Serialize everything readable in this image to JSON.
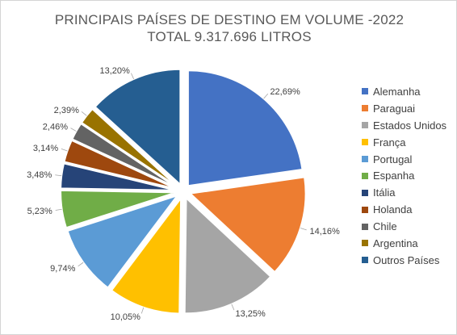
{
  "chart_data": {
    "type": "pie",
    "title": "PRINCIPAIS PAÍSES DE DESTINO EM VOLUME -2022",
    "subtitle": "TOTAL 9.317.696 LITROS",
    "legend_position": "right",
    "slices": [
      {
        "name": "Alemanha",
        "value": 22.69,
        "label": "22,69%",
        "color": "#4472C4"
      },
      {
        "name": "Paraguai",
        "value": 14.16,
        "label": "14,16%",
        "color": "#ED7D31"
      },
      {
        "name": "Estados Unidos",
        "value": 13.25,
        "label": "13,25%",
        "color": "#A5A5A5"
      },
      {
        "name": "França",
        "value": 10.05,
        "label": "10,05%",
        "color": "#FFC000"
      },
      {
        "name": "Portugal",
        "value": 9.74,
        "label": "9,74%",
        "color": "#5B9BD5"
      },
      {
        "name": "Espanha",
        "value": 5.23,
        "label": "5,23%",
        "color": "#70AD47"
      },
      {
        "name": "Itália",
        "value": 3.48,
        "label": "3,48%",
        "color": "#264478"
      },
      {
        "name": "Holanda",
        "value": 3.14,
        "label": "3,14%",
        "color": "#9E480E"
      },
      {
        "name": "Chile",
        "value": 2.46,
        "label": "2,46%",
        "color": "#636363"
      },
      {
        "name": "Argentina",
        "value": 2.39,
        "label": "2,39%",
        "color": "#997300"
      },
      {
        "name": "Outros Países",
        "value": 13.2,
        "label": "13,20%",
        "color": "#255E91"
      }
    ]
  }
}
